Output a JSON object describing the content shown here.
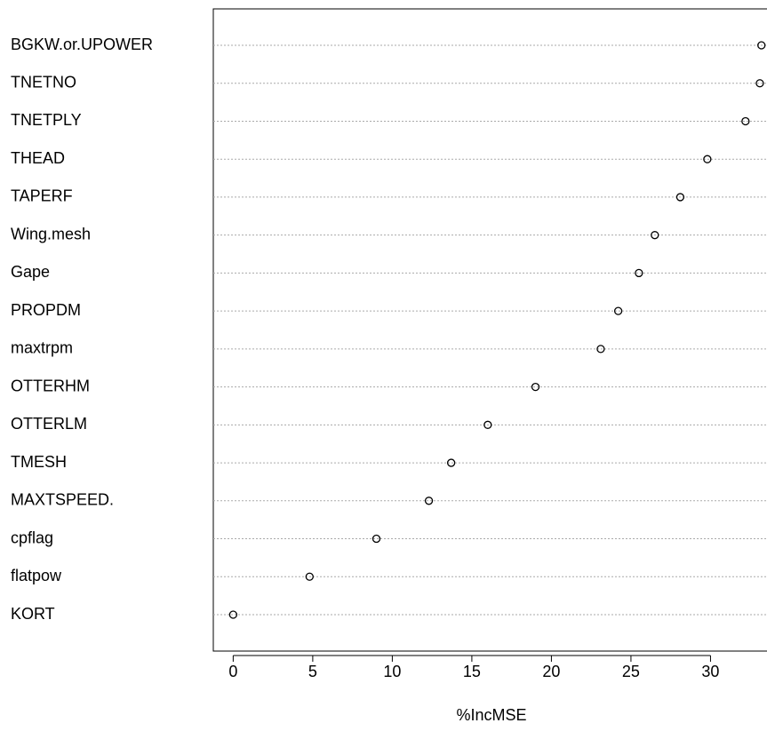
{
  "chart_data": {
    "type": "dot",
    "xlabel": "%IncMSE",
    "categories": [
      "BGKW.or.UPOWER",
      "TNETNO",
      "TNETPLY",
      "THEAD",
      "TAPERF",
      "Wing.mesh",
      "Gape",
      "PROPDM",
      "maxtrpm",
      "OTTERHM",
      "OTTERLM",
      "TMESH",
      "MAXTSPEED.",
      "cpflag",
      "flatpow",
      "KORT"
    ],
    "values": [
      33.2,
      33.1,
      32.2,
      29.8,
      28.1,
      26.5,
      25.5,
      24.2,
      23.1,
      19.0,
      16.0,
      13.7,
      12.3,
      9.0,
      4.8,
      0
    ],
    "color": "#000000",
    "xlim": [
      -1.25,
      34.5
    ],
    "xticks": [
      0,
      5,
      10,
      15,
      20,
      25,
      30
    ],
    "grid": true
  }
}
